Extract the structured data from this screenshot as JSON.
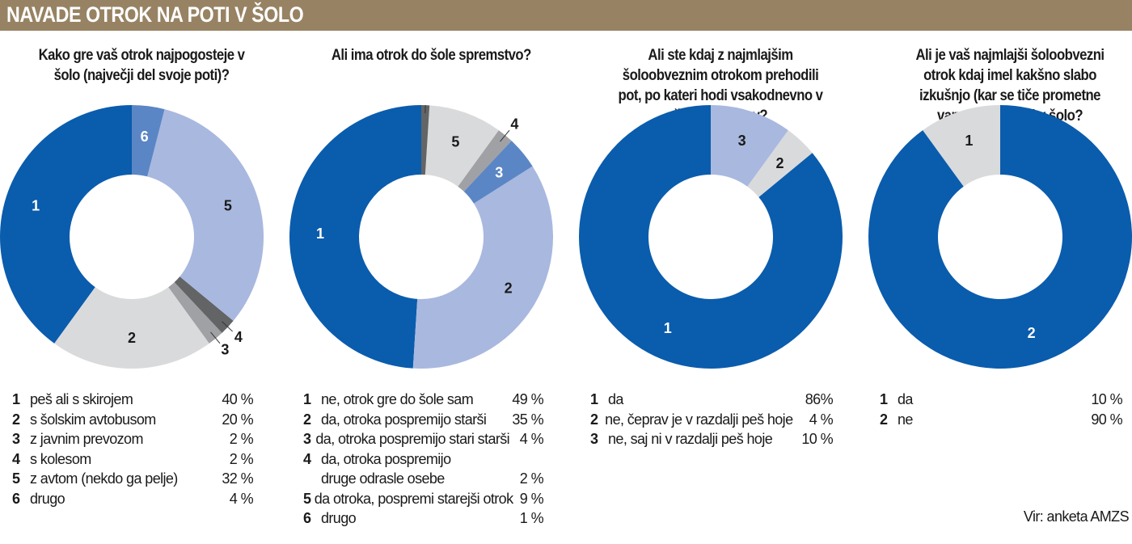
{
  "header": {
    "title": "NAVADE OTROK NA POTI V ŠOLO"
  },
  "source": "Vir: anketa AMZS",
  "colors": {
    "header": "#978363",
    "dark_blue": "#0a5cad",
    "medium_blue": "#5b86c5",
    "light_blue": "#a9b8df",
    "light_grey": "#d9dadc",
    "mid_grey": "#a0a1a4",
    "dark_grey": "#636466"
  },
  "chart_data": [
    {
      "type": "pie",
      "donut": true,
      "title": "Kako gre vaš otrok najpogosteje v šolo (največji del svoje poti)?",
      "legend_position": "bottom",
      "slices": [
        {
          "key": "1",
          "label": "peš ali s skirojem",
          "value": 40,
          "display": "40 %",
          "color": "#0a5cad"
        },
        {
          "key": "2",
          "label": "s šolskim avtobusom",
          "value": 20,
          "display": "20 %",
          "color": "#d9dadc"
        },
        {
          "key": "3",
          "label": "z javnim prevozom",
          "value": 2,
          "display": "2 %",
          "color": "#a0a1a4"
        },
        {
          "key": "4",
          "label": "s kolesom",
          "value": 2,
          "display": "2 %",
          "color": "#636466"
        },
        {
          "key": "5",
          "label": "z avtom (nekdo ga pelje)",
          "value": 32,
          "display": "32 %",
          "color": "#a9b8df"
        },
        {
          "key": "6",
          "label": "drugo",
          "value": 4,
          "display": "4 %",
          "color": "#5b86c5"
        }
      ]
    },
    {
      "type": "pie",
      "donut": true,
      "title": "Ali ima otrok do šole spremstvo?",
      "legend_position": "bottom",
      "slices": [
        {
          "key": "1",
          "label": "ne, otrok gre do šole sam",
          "value": 49,
          "display": "49 %",
          "color": "#0a5cad"
        },
        {
          "key": "2",
          "label": "da, otroka pospremijo starši",
          "value": 35,
          "display": "35 %",
          "color": "#a9b8df"
        },
        {
          "key": "3",
          "label": "da, otroka pospremijo stari starši",
          "value": 4,
          "display": "4 %",
          "color": "#5b86c5"
        },
        {
          "key": "4",
          "label": "da, otroka pospremijo",
          "label_cont": "druge odrasle osebe",
          "value": 2,
          "display": "2 %",
          "color": "#a0a1a4"
        },
        {
          "key": "5",
          "label": "da otroka, pospremi starejši otrok",
          "value": 9,
          "display": "9 %",
          "color": "#d9dadc"
        },
        {
          "key": "6",
          "label": "drugo",
          "value": 1,
          "display": "1 %",
          "color": "#636466"
        }
      ]
    },
    {
      "type": "pie",
      "donut": true,
      "title": "Ali ste kdaj z najmlajšim šoloobveznim otrokom prehodili pot, po kateri hodi vsakodnevno v šolo in domov?",
      "legend_position": "bottom",
      "slices": [
        {
          "key": "1",
          "label": "da",
          "value": 86,
          "display": "86%",
          "color": "#0a5cad"
        },
        {
          "key": "2",
          "label": "ne, čeprav je v razdalji peš hoje",
          "value": 4,
          "display": "4 %",
          "color": "#d9dadc"
        },
        {
          "key": "3",
          "label": "ne, saj ni v razdalji peš hoje",
          "value": 10,
          "display": "10 %",
          "color": "#a9b8df"
        }
      ]
    },
    {
      "type": "pie",
      "donut": true,
      "title": "Ali je vaš najmlajši šoloobvezni otrok kdaj imel kakšno slabo izkušnjo (kar se tiče prometne varnosti) na poti v šolo?",
      "legend_position": "bottom",
      "slices": [
        {
          "key": "1",
          "label": "da",
          "value": 10,
          "display": "10 %",
          "color": "#d9dadc"
        },
        {
          "key": "2",
          "label": "ne",
          "value": 90,
          "display": "90 %",
          "color": "#0a5cad"
        }
      ]
    }
  ]
}
